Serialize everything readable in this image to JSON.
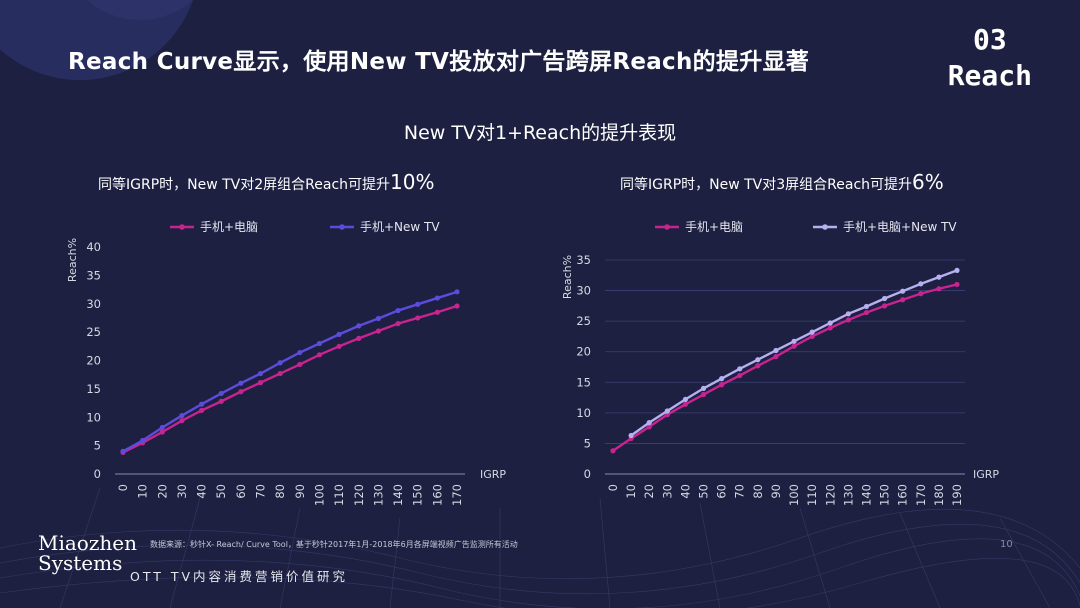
{
  "header": {
    "headline": "Reach Curve显示，使用New TV投放对广告跨屏Reach的提升显著",
    "corner_num": "03",
    "corner_label": "Reach"
  },
  "section_title": "New TV对1+Reach的提升表现",
  "colors": {
    "series_a": "#c7248f",
    "series_b": "#5d4bdc",
    "series_c": "#b6b0f0"
  },
  "chart_data": [
    {
      "type": "line",
      "subtitle_prefix": "同等IGRP时，New TV对2屏组合Reach可提升",
      "subtitle_highlight": "10%",
      "xlabel": "IGRP",
      "ylabel": "Reach%",
      "ylim": [
        0,
        40
      ],
      "yticks": [
        0,
        5,
        10,
        15,
        20,
        25,
        30,
        35,
        40
      ],
      "x": [
        0,
        10,
        20,
        30,
        40,
        50,
        60,
        70,
        80,
        90,
        100,
        110,
        120,
        130,
        140,
        150,
        160,
        170
      ],
      "series": [
        {
          "name": "手机+电脑",
          "values": [
            3.8,
            5.5,
            7.4,
            9.4,
            11.2,
            12.8,
            14.5,
            16.1,
            17.7,
            19.3,
            21.0,
            22.5,
            23.9,
            25.2,
            26.5,
            27.5,
            28.5,
            29.6
          ]
        },
        {
          "name": "手机+New TV",
          "values": [
            4.0,
            5.9,
            8.2,
            10.3,
            12.3,
            14.2,
            16.0,
            17.7,
            19.6,
            21.4,
            23.0,
            24.6,
            26.1,
            27.4,
            28.8,
            29.9,
            31.0,
            32.1
          ]
        }
      ],
      "legend_position": "top",
      "grid": false
    },
    {
      "type": "line",
      "subtitle_prefix": "同等IGRP时，New TV对3屏组合Reach可提升",
      "subtitle_highlight": "6%",
      "xlabel": "IGRP",
      "ylabel": "Reach%",
      "ylim": [
        0,
        35
      ],
      "yticks": [
        0,
        5,
        10,
        15,
        20,
        25,
        30,
        35
      ],
      "x": [
        0,
        10,
        20,
        30,
        40,
        50,
        60,
        70,
        80,
        90,
        100,
        110,
        120,
        130,
        140,
        150,
        160,
        170,
        180,
        190
      ],
      "series": [
        {
          "name": "手机+电脑",
          "values": [
            3.8,
            5.8,
            7.7,
            9.7,
            11.4,
            13.0,
            14.6,
            16.1,
            17.7,
            19.2,
            20.9,
            22.5,
            23.9,
            25.2,
            26.4,
            27.5,
            28.5,
            29.5,
            30.3,
            31.0
          ]
        },
        {
          "name": "手机+电脑+New TV",
          "values": [
            null,
            6.3,
            8.4,
            10.3,
            12.2,
            14.0,
            15.6,
            17.2,
            18.7,
            20.2,
            21.7,
            23.2,
            24.7,
            26.2,
            27.4,
            28.7,
            29.9,
            31.1,
            32.2,
            33.3
          ]
        }
      ],
      "legend_position": "top",
      "grid": true
    }
  ],
  "footer": {
    "source": "数据来源：秒针X- Reach/ Curve Tool，基于秒针2017年1月-2018年6月各屏端视频广告监测所有活动",
    "page": "10",
    "brand_line1": "Miaozhen",
    "brand_line2": "Systems",
    "tagline": "OTT TV内容消费营销价值研究"
  }
}
